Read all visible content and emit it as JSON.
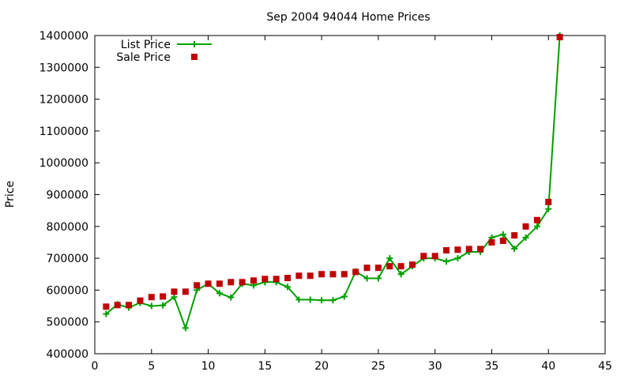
{
  "chart_data": {
    "type": "line",
    "title": "Sep 2004 94044 Home Prices",
    "xlabel": "",
    "ylabel": "Price",
    "xlim": [
      0,
      45
    ],
    "ylim": [
      400000,
      1400000
    ],
    "xticks": [
      0,
      5,
      10,
      15,
      20,
      25,
      30,
      35,
      40,
      45
    ],
    "yticks": [
      400000,
      500000,
      600000,
      700000,
      800000,
      900000,
      1000000,
      1100000,
      1200000,
      1300000,
      1400000
    ],
    "xtick_labels": [
      "0",
      "5",
      "10",
      "15",
      "20",
      "25",
      "30",
      "35",
      "40",
      "45"
    ],
    "ytick_labels": [
      "400000",
      "500000",
      "600000",
      "700000",
      "800000",
      "900000",
      "1000000",
      "1100000",
      "1200000",
      "1300000",
      "1400000"
    ],
    "grid": false,
    "legend_position": "top-left",
    "series": [
      {
        "name": "List Price",
        "style": "linespoints",
        "color": "#00a000",
        "marker": "plus",
        "x": [
          1,
          2,
          3,
          4,
          5,
          6,
          7,
          8,
          9,
          10,
          11,
          12,
          13,
          14,
          15,
          16,
          17,
          18,
          19,
          20,
          21,
          22,
          23,
          24,
          25,
          26,
          27,
          28,
          29,
          30,
          31,
          32,
          33,
          34,
          35,
          36,
          37,
          38,
          39,
          40,
          41
        ],
        "y": [
          525000,
          555000,
          545000,
          560000,
          550000,
          552000,
          578000,
          481000,
          600000,
          620000,
          590000,
          577000,
          620000,
          615000,
          625000,
          625000,
          610000,
          570000,
          570000,
          568000,
          568000,
          580000,
          658000,
          637000,
          637000,
          700000,
          650000,
          675000,
          700000,
          700000,
          690000,
          700000,
          720000,
          720000,
          765000,
          775000,
          730000,
          765000,
          800000,
          855000,
          1400000
        ]
      },
      {
        "name": "Sale Price",
        "style": "points",
        "color": "#c00000",
        "marker": "square",
        "x": [
          1,
          2,
          3,
          4,
          5,
          6,
          7,
          8,
          9,
          10,
          11,
          12,
          13,
          14,
          15,
          16,
          17,
          18,
          19,
          20,
          21,
          22,
          23,
          24,
          25,
          26,
          27,
          28,
          29,
          30,
          31,
          32,
          33,
          34,
          35,
          36,
          37,
          38,
          39,
          40,
          41
        ],
        "y": [
          548000,
          553000,
          553000,
          567000,
          578000,
          580000,
          595000,
          595000,
          615000,
          620000,
          620000,
          625000,
          625000,
          630000,
          635000,
          635000,
          638000,
          645000,
          645000,
          650000,
          650000,
          650000,
          657000,
          670000,
          670000,
          675000,
          675000,
          680000,
          707000,
          707000,
          725000,
          727000,
          729000,
          729000,
          750000,
          755000,
          772000,
          800000,
          820000,
          877000,
          1395000
        ]
      }
    ]
  }
}
